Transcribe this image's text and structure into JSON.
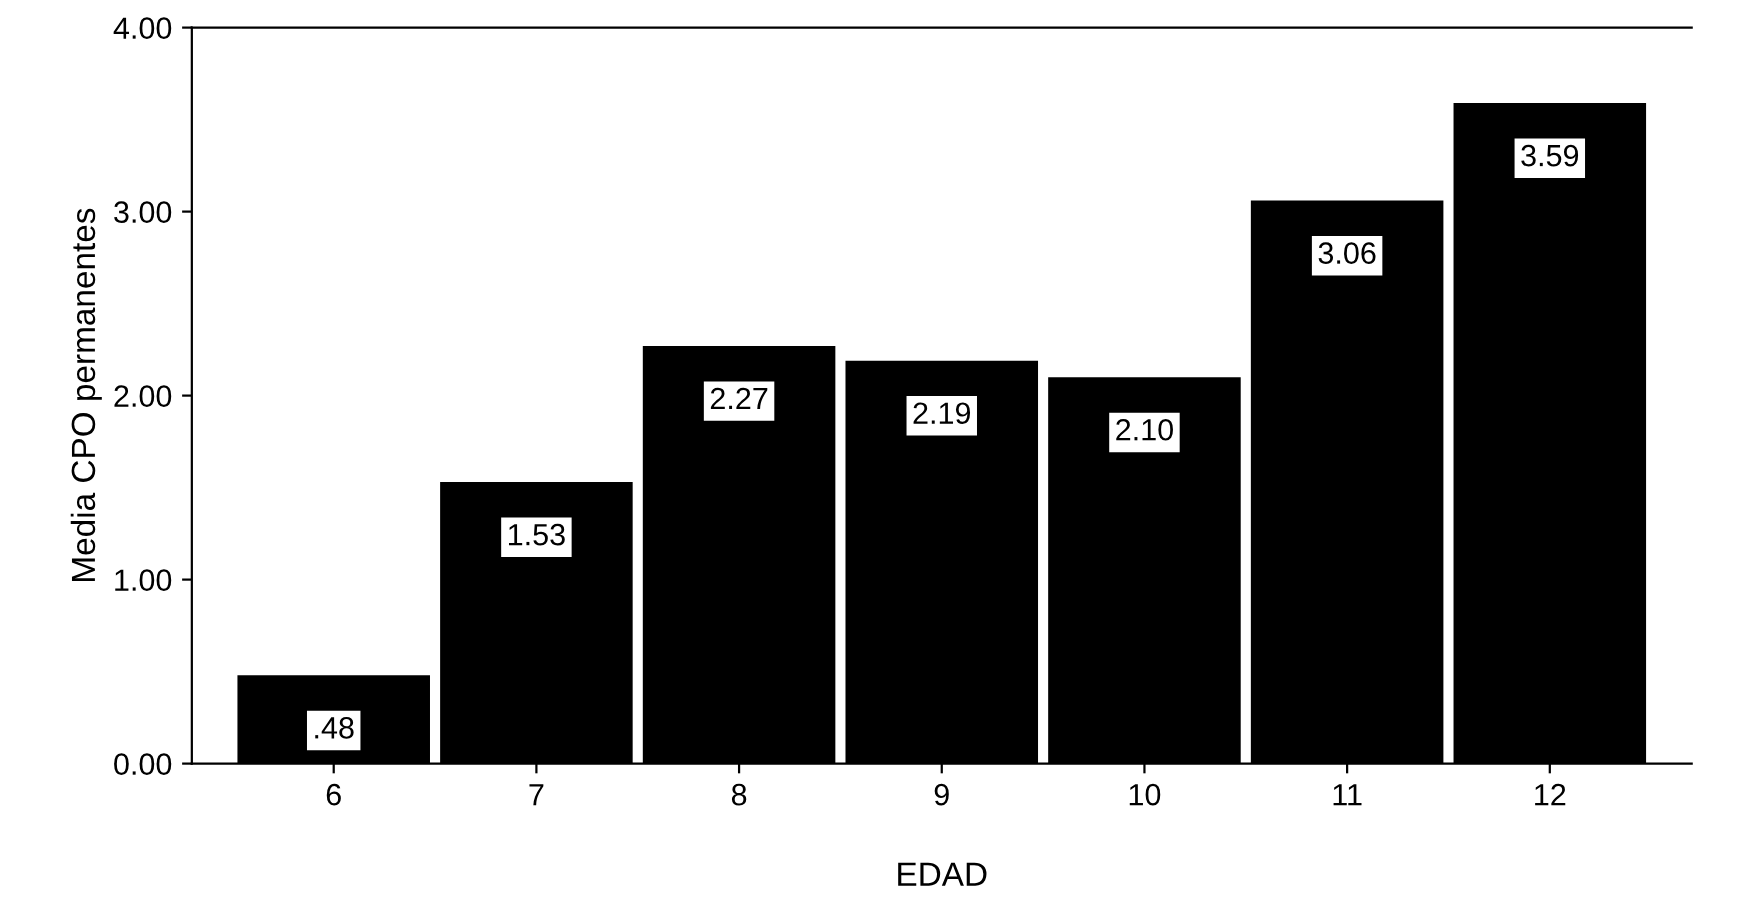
{
  "chart_data": {
    "type": "bar",
    "xlabel": "EDAD",
    "ylabel": "Media CPO permanentes",
    "categories": [
      "6",
      "7",
      "8",
      "9",
      "10",
      "11",
      "12"
    ],
    "values": [
      0.48,
      1.53,
      2.27,
      2.19,
      2.1,
      3.06,
      3.59
    ],
    "value_labels": [
      ".48",
      "1.53",
      "2.27",
      "2.19",
      "2.10",
      "3.06",
      "3.59"
    ],
    "color": "#000000",
    "ylim": [
      0,
      4
    ],
    "yticks": [
      {
        "value": 0,
        "label": "0.00"
      },
      {
        "value": 1,
        "label": "1.00"
      },
      {
        "value": 2,
        "label": "2.00"
      },
      {
        "value": 3,
        "label": "3.00"
      },
      {
        "value": 4,
        "label": "4.00"
      }
    ],
    "grid": false
  }
}
